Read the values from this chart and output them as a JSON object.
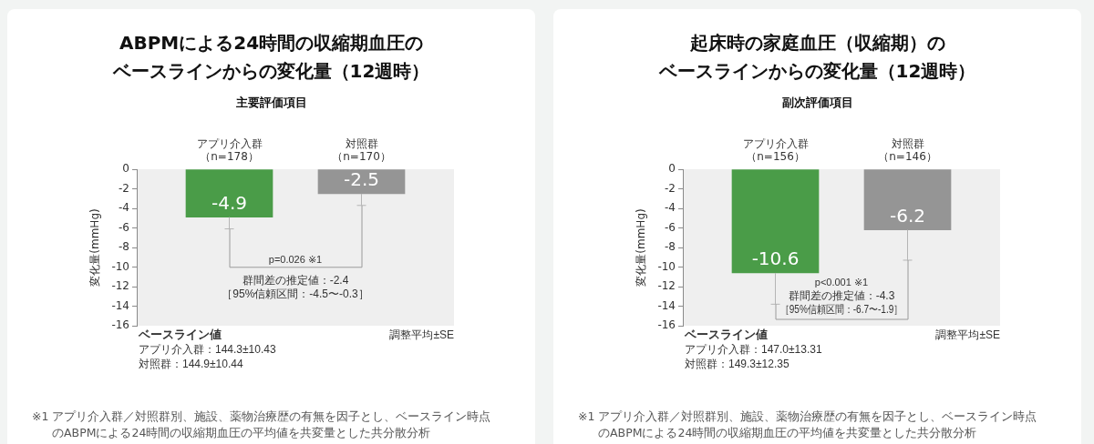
{
  "chart_data": [
    {
      "type": "bar",
      "title": "ABPMによる24時間の収縮期血圧のベースラインからの変化量（12週時）",
      "subtitle": "主要評価項目",
      "ylabel": "変化量(mmHg)",
      "categories": [
        "アプリ介入群（n=178）",
        "対照群（n=170）"
      ],
      "values": [
        -4.9,
        -2.5
      ],
      "colors": [
        "#4a9c48",
        "#959595"
      ],
      "errors": [
        [
          -6.1,
          -4.9
        ],
        [
          -3.7,
          -2.5
        ]
      ],
      "ylim": [
        -16,
        0
      ],
      "yticks": [
        -16,
        -14,
        -12,
        -10,
        -8,
        -6,
        -4,
        -2,
        0
      ],
      "data_labels": true,
      "annotations": [
        "p=0.026 ※1",
        "群間差の推定値：-2.4",
        "［95%信頼区間：-4.5〜-0.3］",
        "ベースライン値",
        "アプリ介入群：144.3±10.43",
        "対照群：144.9±10.44",
        "調整平均±SE",
        "※1 アプリ介入群／対照群別、施設、薬物治療歴の有無を因子とし、ベースライン時点のABPMによる24時間の収縮期血圧の平均値を共変量とした共分散分析"
      ]
    },
    {
      "type": "bar",
      "title": "起床時の家庭血圧（収縮期）のベースラインからの変化量（12週時）",
      "subtitle": "副次評価項目",
      "ylabel": "変化量(mmHg)",
      "categories": [
        "アプリ介入群（n=156）",
        "対照群（n=146）"
      ],
      "values": [
        -10.6,
        -6.2
      ],
      "colors": [
        "#4a9c48",
        "#959595"
      ],
      "errors": [
        [
          -13.8,
          -10.6
        ],
        [
          -9.3,
          -6.2
        ]
      ],
      "ylim": [
        -16,
        0
      ],
      "yticks": [
        -16,
        -14,
        -12,
        -10,
        -8,
        -6,
        -4,
        -2,
        0
      ],
      "data_labels": true,
      "annotations": [
        "p<0.001 ※1",
        "群間差の推定値：-4.3",
        "［95%信頼区間：-6.7〜-1.9］",
        "ベースライン値",
        "アプリ介入群：147.0±13.31",
        "対照群：149.3±12.35",
        "調整平均±SE",
        "※1 アプリ介入群／対照群別、施設、薬物治療歴の有無を因子とし、ベースライン時点のABPMによる24時間の収縮期血圧の平均値を共変量とした共分散分析"
      ]
    }
  ]
}
